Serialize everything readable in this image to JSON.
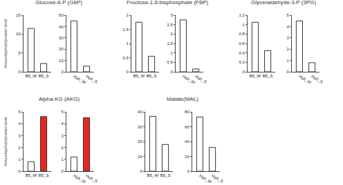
{
  "chart_data": [
    {
      "type": "bar",
      "title": "Glucose-6-P (G6P)",
      "y_label": "Amount(pmol)/protein level",
      "categories": [
        "B5_W",
        "B5_S"
      ],
      "values": [
        11.5,
        2.2
      ],
      "colors": [
        "#ffffff",
        "#ffffff"
      ],
      "ylim": [
        0,
        15
      ],
      "yticks": [
        0,
        5,
        10,
        15
      ]
    },
    {
      "type": "bar",
      "categories": [
        "Huh_W",
        "Huh_S"
      ],
      "values": [
        45,
        5
      ],
      "colors": [
        "#ffffff",
        "#ffffff"
      ],
      "ylim": [
        0,
        50
      ],
      "yticks": [
        0,
        10,
        20,
        30,
        40,
        50
      ]
    },
    {
      "type": "bar",
      "title": "Fructose-1,6-bisphosphate (FBP)",
      "categories": [
        "B5_W",
        "B5_S"
      ],
      "values": [
        1.75,
        0.55
      ],
      "colors": [
        "#ffffff",
        "#ffffff"
      ],
      "ylim": [
        0,
        2
      ],
      "yticks": [
        0,
        0.5,
        1,
        1.5,
        2
      ]
    },
    {
      "type": "bar",
      "categories": [
        "Huh_W",
        "Huh_S"
      ],
      "values": [
        2.75,
        0.15
      ],
      "colors": [
        "#ffffff",
        "#ffffff"
      ],
      "ylim": [
        0,
        3
      ],
      "yticks": [
        0,
        0.5,
        1,
        1.5,
        2,
        2.5,
        3
      ]
    },
    {
      "type": "bar",
      "title": "Glyceraldehyde-3-P (3PG)",
      "categories": [
        "B5_W",
        "B5_S"
      ],
      "values": [
        1.05,
        0.45
      ],
      "colors": [
        "#ffffff",
        "#ffffff"
      ],
      "ylim": [
        0,
        1.2
      ],
      "yticks": [
        0,
        0.2,
        0.4,
        0.6,
        0.8,
        1,
        1.2
      ]
    },
    {
      "type": "bar",
      "categories": [
        "Huh_W",
        "Huh_S"
      ],
      "values": [
        4.5,
        0.8
      ],
      "colors": [
        "#ffffff",
        "#ffffff"
      ],
      "ylim": [
        0,
        5
      ],
      "yticks": [
        0,
        1,
        2,
        3,
        4,
        5
      ]
    },
    {
      "type": "bar",
      "title": "Alpha-KG (AKG)",
      "y_label": "Amount(pmol)/protein level",
      "categories": [
        "B5_W",
        "B5_S"
      ],
      "values": [
        0.8,
        4.6
      ],
      "colors": [
        "#ffffff",
        "#e8261f"
      ],
      "ylim": [
        0,
        5
      ],
      "yticks": [
        0,
        1,
        2,
        3,
        4,
        5
      ]
    },
    {
      "type": "bar",
      "categories": [
        "Huh_W",
        "Huh_S"
      ],
      "values": [
        1.2,
        4.5
      ],
      "colors": [
        "#ffffff",
        "#e8261f"
      ],
      "ylim": [
        0,
        5
      ],
      "yticks": [
        0,
        1,
        2,
        3,
        4,
        5
      ]
    },
    {
      "type": "bar",
      "title": "Malate(MAL)",
      "categories": [
        "B5_W",
        "B5_S"
      ],
      "values": [
        37,
        18
      ],
      "colors": [
        "#ffffff",
        "#ffffff"
      ],
      "ylim": [
        0,
        40
      ],
      "yticks": [
        0,
        10,
        20,
        30,
        40
      ]
    },
    {
      "type": "bar",
      "categories": [
        "Huh_W",
        "Huh_S"
      ],
      "values": [
        73,
        32
      ],
      "colors": [
        "#ffffff",
        "#ffffff"
      ],
      "ylim": [
        0,
        80
      ],
      "yticks": [
        0,
        20,
        40,
        60,
        80
      ]
    }
  ]
}
